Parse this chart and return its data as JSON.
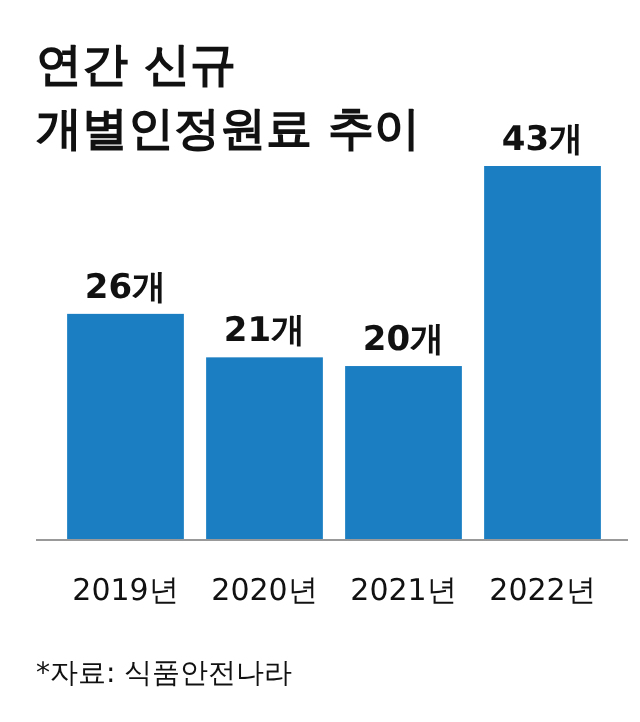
{
  "chart_data": {
    "type": "bar",
    "title": "연간 신규\n개별인정원료 추이",
    "categories": [
      "2019년",
      "2020년",
      "2021년",
      "2022년"
    ],
    "values": [
      26,
      21,
      20,
      43
    ],
    "color": "#1b7ec2",
    "value_labels": [
      "26개",
      "21개",
      "20개",
      "43개"
    ],
    "annotations": [
      "*자료: 식품안전나라"
    ]
  }
}
